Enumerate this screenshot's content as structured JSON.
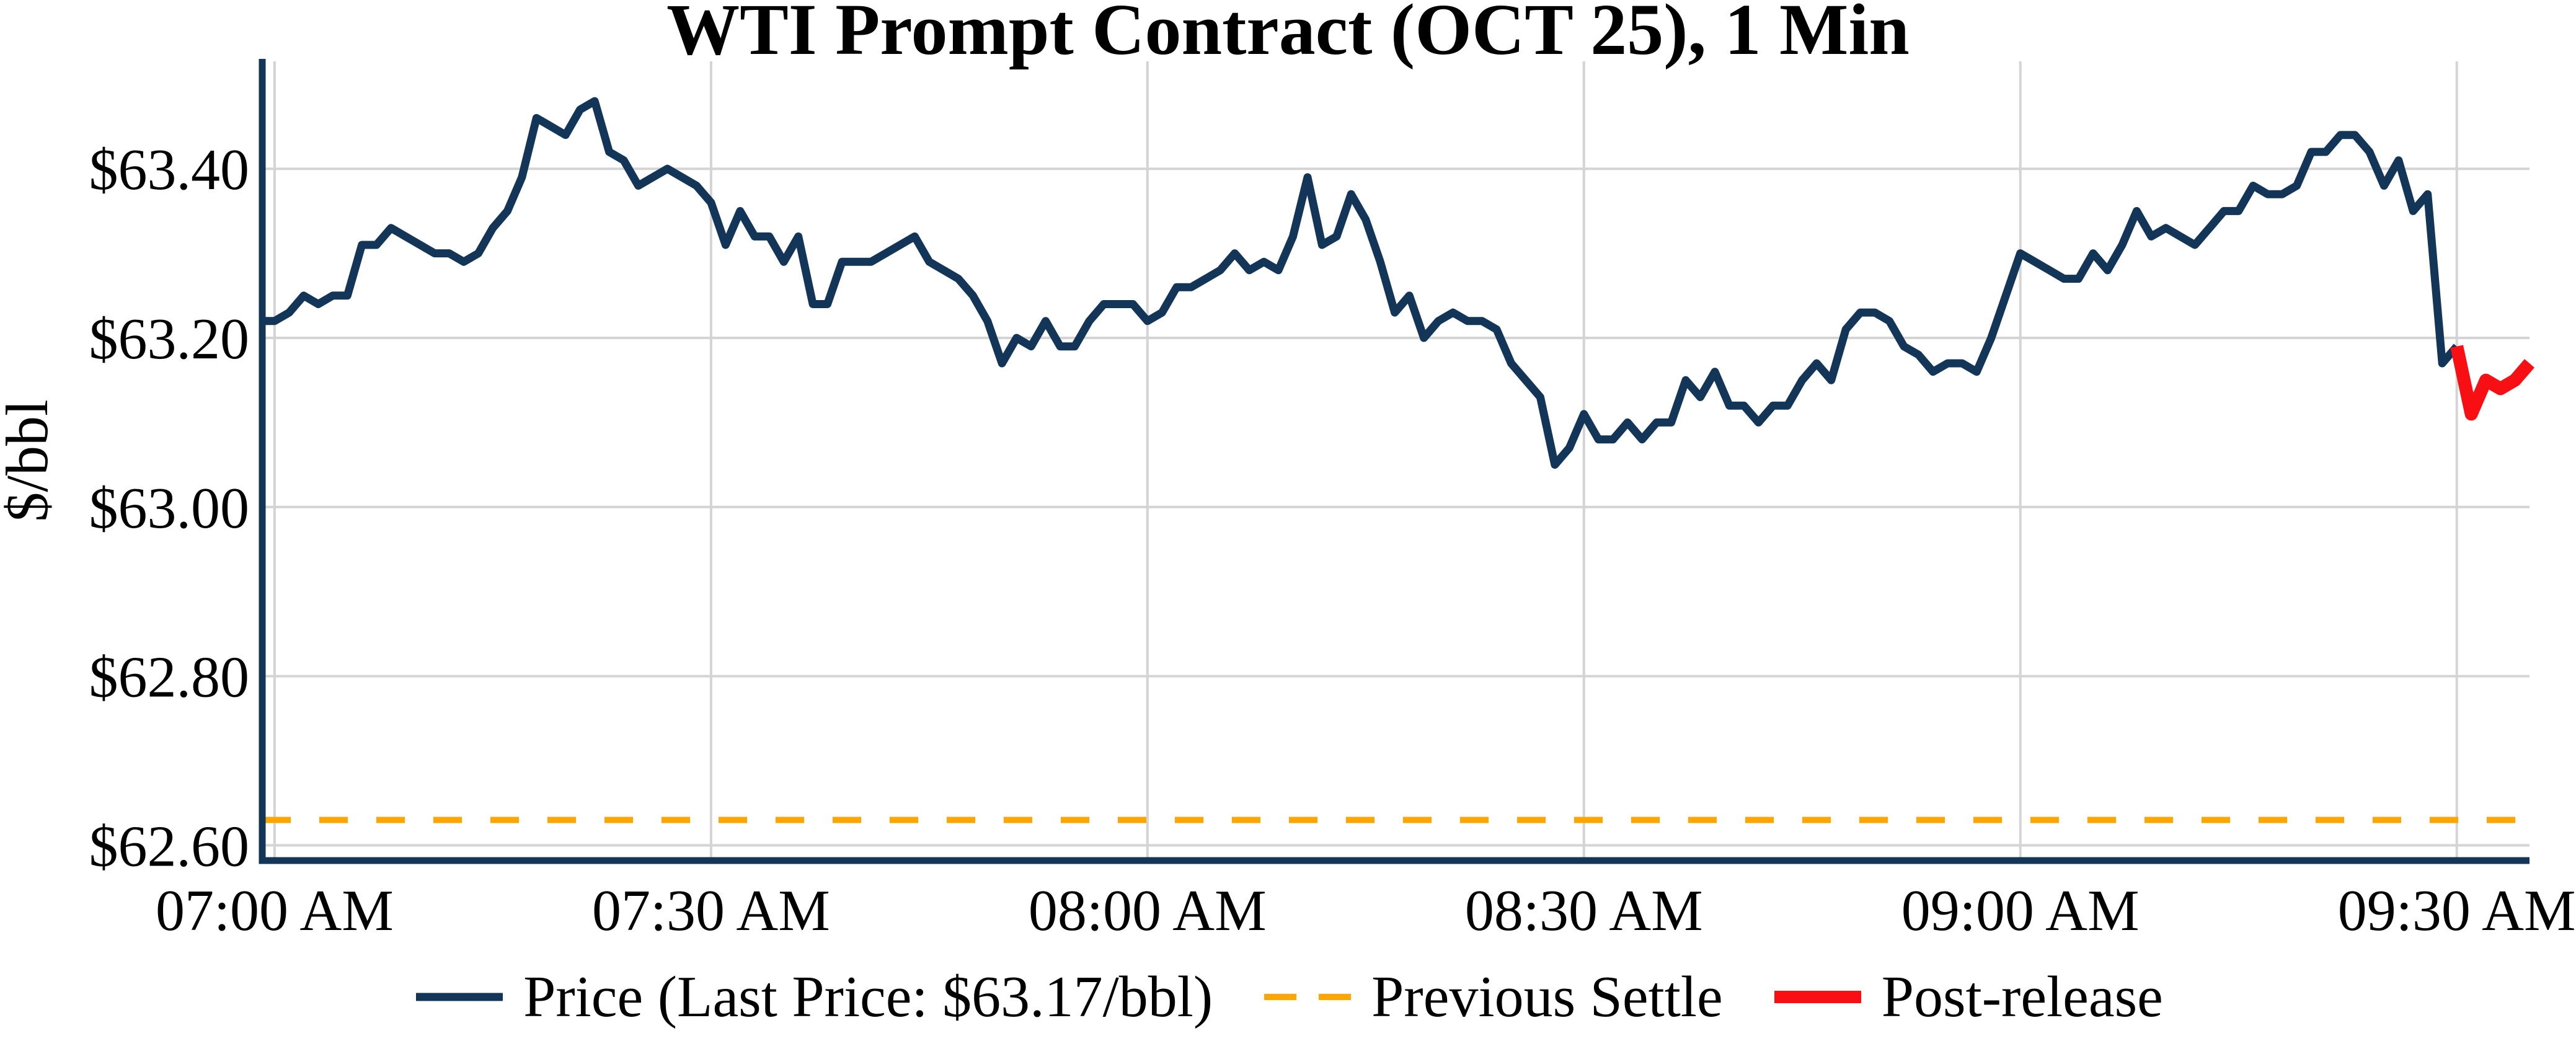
{
  "chart_data": {
    "type": "line",
    "title": "WTI Prompt Contract (OCT 25), 1 Min",
    "ylabel": "$/bbl",
    "x_tick_labels": [
      "07:00 AM",
      "07:30 AM",
      "08:00 AM",
      "08:30 AM",
      "09:00 AM",
      "09:30 AM"
    ],
    "x_tick_minutes": [
      0,
      30,
      60,
      90,
      120,
      150
    ],
    "y_tick_labels": [
      "$63.40",
      "$63.20",
      "$63.00",
      "$62.80",
      "$62.60"
    ],
    "y_tick_values": [
      63.4,
      63.2,
      63.0,
      62.8,
      62.6
    ],
    "xlim_minutes": [
      -0.85,
      155
    ],
    "ylim": [
      62.582,
      63.527
    ],
    "grid": {
      "color": "#d4d4d4",
      "width": 4
    },
    "axis_color": "#133558",
    "legend_position": "bottom-center",
    "x_start_time": "07:00 AM",
    "x_end_time": "09:35 AM",
    "last_price": 63.17,
    "series": [
      {
        "name": "Price",
        "legend_label": "Price (Last Price: $63.17/bbl)",
        "color": "#133558",
        "line_width": 13,
        "style": "solid",
        "start_minute": 0,
        "minute_interval": 1,
        "from_left_spine": true,
        "values": [
          63.22,
          63.23,
          63.25,
          63.24,
          63.25,
          63.25,
          63.31,
          63.31,
          63.33,
          63.32,
          63.31,
          63.3,
          63.3,
          63.29,
          63.3,
          63.33,
          63.35,
          63.39,
          63.46,
          63.45,
          63.44,
          63.47,
          63.48,
          63.42,
          63.41,
          63.38,
          63.39,
          63.4,
          63.39,
          63.38,
          63.36,
          63.31,
          63.35,
          63.32,
          63.32,
          63.29,
          63.32,
          63.24,
          63.24,
          63.29,
          63.29,
          63.29,
          63.3,
          63.31,
          63.32,
          63.29,
          63.28,
          63.27,
          63.25,
          63.22,
          63.17,
          63.2,
          63.19,
          63.22,
          63.19,
          63.19,
          63.22,
          63.24,
          63.24,
          63.24,
          63.22,
          63.23,
          63.26,
          63.26,
          63.27,
          63.28,
          63.3,
          63.28,
          63.29,
          63.28,
          63.32,
          63.39,
          63.31,
          63.32,
          63.37,
          63.34,
          63.29,
          63.23,
          63.25,
          63.2,
          63.22,
          63.23,
          63.22,
          63.22,
          63.21,
          63.17,
          63.15,
          63.13,
          63.05,
          63.07,
          63.11,
          63.08,
          63.08,
          63.1,
          63.08,
          63.1,
          63.1,
          63.15,
          63.13,
          63.16,
          63.12,
          63.12,
          63.1,
          63.12,
          63.12,
          63.15,
          63.17,
          63.15,
          63.21,
          63.23,
          63.23,
          63.22,
          63.19,
          63.18,
          63.16,
          63.17,
          63.17,
          63.16,
          63.2,
          63.25,
          63.3,
          63.29,
          63.28,
          63.27,
          63.27,
          63.3,
          63.28,
          63.31,
          63.35,
          63.32,
          63.33,
          63.32,
          63.31,
          63.33,
          63.35,
          63.35,
          63.38,
          63.37,
          63.37,
          63.38,
          63.42,
          63.42,
          63.44,
          63.44,
          63.42,
          63.38,
          63.41,
          63.35,
          63.37,
          63.17,
          63.19
        ]
      },
      {
        "name": "Post-release",
        "legend_label": "Post-release",
        "color": "#f80f14",
        "line_width": 21,
        "style": "solid",
        "start_minute": 150,
        "minute_interval": 1,
        "values": [
          63.19,
          63.11,
          63.15,
          63.14,
          63.15,
          63.17
        ]
      }
    ],
    "reference_lines": [
      {
        "name": "Previous Settle",
        "legend_label": "Previous Settle",
        "value": 62.63,
        "color": "#ffa500",
        "style": "dashed",
        "line_width": 10,
        "dash_pattern": "46 46"
      }
    ]
  }
}
